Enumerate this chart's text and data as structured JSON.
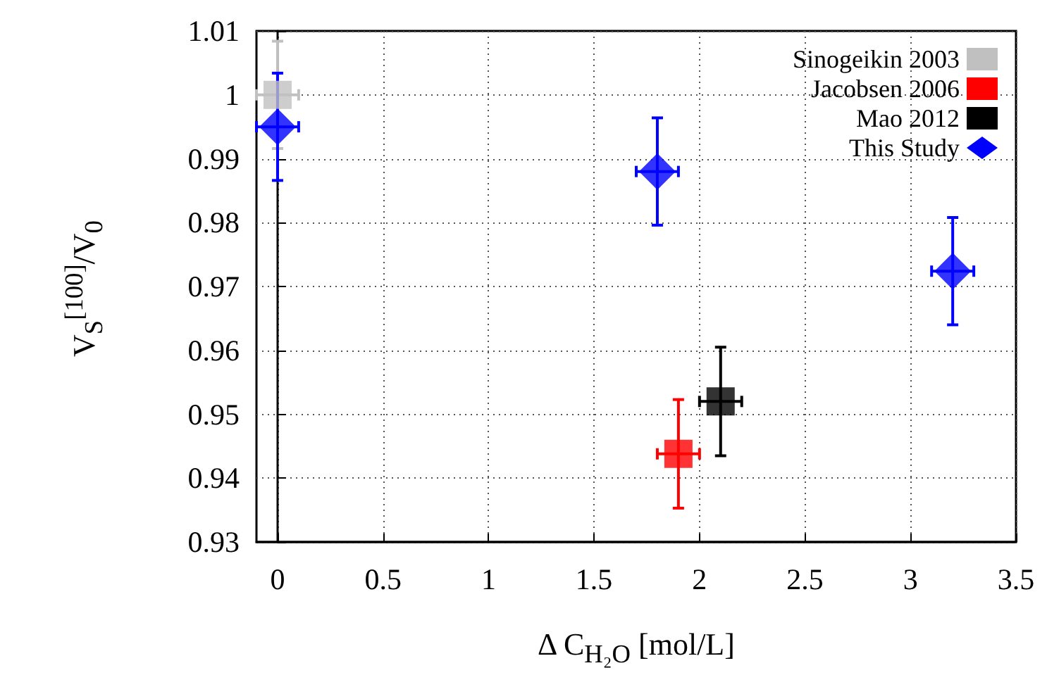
{
  "chart_data": {
    "type": "scatter",
    "xlabel": "Δ C$_{H₂O}$ [mol/L]",
    "ylabel": "V$_{S}$$^{[100]}$/V$_{0}$",
    "xlim": [
      -0.1,
      3.5
    ],
    "xticks": [
      0,
      0.5,
      1,
      1.5,
      2,
      2.5,
      3,
      3.5
    ],
    "ylim": [
      0.93,
      1.01
    ],
    "yticks": [
      0.93,
      0.94,
      0.95,
      0.96,
      0.97,
      0.98,
      0.99,
      1,
      1.01
    ],
    "grid": true,
    "legend": "top right",
    "series": [
      {
        "name": "Sinogeikin 2003",
        "color": "#c0c0c0",
        "marker": "square",
        "x": [
          0
        ],
        "values": [
          1.0
        ],
        "errors": [
          0.0084
        ],
        "xerrors": [
          0.1
        ]
      },
      {
        "name": "Jacobsen 2006",
        "color": "#ff0000",
        "marker": "square",
        "x": [
          1.9
        ],
        "values": [
          0.9438
        ],
        "errors": [
          0.0085
        ],
        "xerrors": [
          0.1
        ]
      },
      {
        "name": "Mao 2012",
        "color": "#000000",
        "marker": "square",
        "x": [
          2.1
        ],
        "values": [
          0.952
        ],
        "errors": [
          0.0085
        ],
        "xerrors": [
          0.1
        ]
      },
      {
        "name": "This Study",
        "color": "#0000ff",
        "marker": "diamond",
        "x": [
          0,
          1.8,
          3.2
        ],
        "values": [
          0.995,
          0.988,
          0.9724
        ],
        "errors": [
          0.0084,
          0.0084,
          0.0084
        ],
        "xerrors": [
          0.1,
          0.1,
          0.1
        ]
      }
    ]
  }
}
